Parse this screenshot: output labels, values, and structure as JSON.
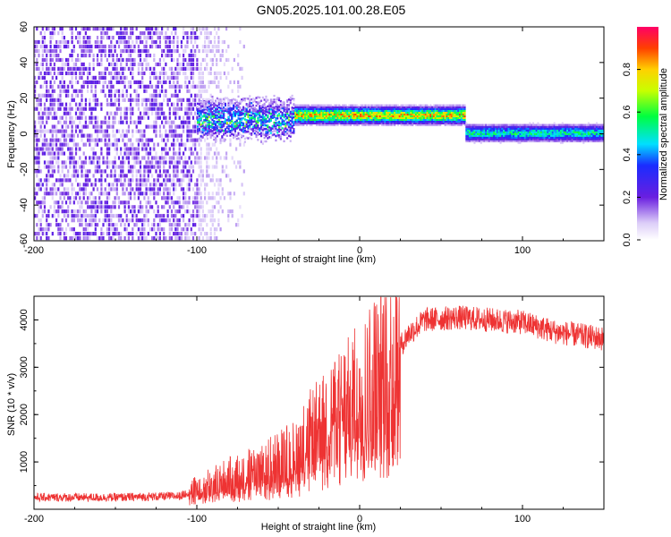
{
  "title": "GN05.2025.101.00.28.E05",
  "colors": {
    "snr_line": "#ee3333",
    "spectral_band_low": "#7b2ff7",
    "spectral_band_high": "#ff0000"
  },
  "chart_data": [
    {
      "type": "heatmap",
      "name": "spectrogram",
      "xlabel": "Height of straight line (km)",
      "ylabel": "Frequency (Hz)",
      "xlim": [
        -200,
        150
      ],
      "ylim": [
        -60,
        60
      ],
      "x_ticks": [
        -200,
        -100,
        0,
        100
      ],
      "y_ticks": [
        -60,
        -40,
        -20,
        0,
        20,
        40,
        60
      ],
      "x_tick_labels": [
        "-200",
        "-100",
        "0",
        "100"
      ],
      "y_tick_labels": [
        "-60",
        "-40",
        "-20",
        "0",
        "20",
        "40",
        "60"
      ],
      "colorbar": {
        "label": "Normalized spectral amplitude",
        "range": [
          0,
          1
        ],
        "ticks": [
          0.0,
          0.2,
          0.4,
          0.6,
          0.8
        ],
        "tick_labels": [
          "0.0",
          "0.2",
          "0.4",
          "0.6",
          "0.8"
        ]
      },
      "bands": [
        {
          "x_start": -100,
          "x_end": -40,
          "freq_center": 8,
          "freq_width": 10,
          "amplitude": 0.45
        },
        {
          "x_start": -40,
          "x_end": 65,
          "freq_center": 10,
          "freq_width": 5,
          "amplitude": 0.75
        },
        {
          "x_start": 65,
          "x_end": 150,
          "freq_center": 0,
          "freq_width": 5,
          "amplitude": 0.5
        }
      ],
      "noise_region": {
        "x_start": -200,
        "x_end": -100,
        "amplitude": 0.12
      }
    },
    {
      "type": "line",
      "name": "snr",
      "xlabel": "Height of straight line (km)",
      "ylabel": "SNR (10 * v/v)",
      "xlim": [
        -200,
        150
      ],
      "ylim": [
        0,
        4500
      ],
      "x_ticks": [
        -200,
        -100,
        0,
        100
      ],
      "y_ticks": [
        1000,
        2000,
        3000,
        4000
      ],
      "x_tick_labels": [
        "-200",
        "-100",
        "0",
        "100"
      ],
      "y_tick_labels": [
        "1000",
        "2000",
        "3000",
        "4000"
      ],
      "series": [
        {
          "name": "SNR",
          "x": [
            -200,
            -150,
            -110,
            -100,
            -80,
            -60,
            -40,
            -30,
            -20,
            -10,
            0,
            10,
            20,
            30,
            40,
            60,
            80,
            100,
            120,
            150
          ],
          "y": [
            250,
            250,
            280,
            450,
            700,
            900,
            1200,
            1600,
            1900,
            2200,
            2500,
            2900,
            3200,
            3700,
            4000,
            4050,
            4000,
            3950,
            3750,
            3600
          ]
        }
      ]
    }
  ]
}
